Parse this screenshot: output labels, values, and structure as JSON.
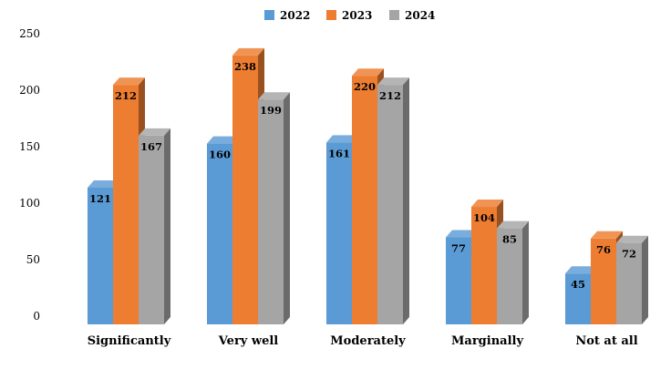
{
  "chart_data": {
    "type": "bar",
    "style": "3d-clustered-column",
    "categories": [
      "Significantly",
      "Very well",
      "Moderately",
      "Marginally",
      "Not at all"
    ],
    "series": [
      {
        "name": "2022",
        "color": "#5B9BD5",
        "values": [
          121,
          160,
          161,
          77,
          45
        ]
      },
      {
        "name": "2023",
        "color": "#ED7D31",
        "values": [
          212,
          238,
          220,
          104,
          76
        ]
      },
      {
        "name": "2024",
        "color": "#A5A5A5",
        "values": [
          167,
          199,
          212,
          85,
          72
        ]
      }
    ],
    "ylim": [
      0,
      250
    ],
    "yticks": [
      0,
      50,
      100,
      150,
      200,
      250
    ],
    "grid": false,
    "legend_position": "top-center",
    "title": "",
    "xlabel": "",
    "ylabel": ""
  }
}
